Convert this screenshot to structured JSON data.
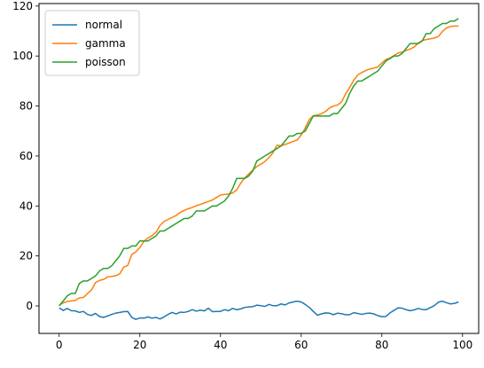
{
  "chart_data": {
    "type": "line",
    "title": "",
    "xlabel": "",
    "ylabel": "",
    "xlim": [
      -5,
      104
    ],
    "ylim": [
      -11,
      121
    ],
    "xticks": [
      0,
      20,
      40,
      60,
      80,
      100
    ],
    "yticks": [
      0,
      20,
      40,
      60,
      80,
      100,
      120
    ],
    "grid": false,
    "legend": {
      "position": "top-left",
      "entries": [
        "normal",
        "gamma",
        "poisson"
      ]
    },
    "x": [
      0,
      1,
      2,
      3,
      4,
      5,
      6,
      7,
      8,
      9,
      10,
      11,
      12,
      13,
      14,
      15,
      16,
      17,
      18,
      19,
      20,
      21,
      22,
      23,
      24,
      25,
      26,
      27,
      28,
      29,
      30,
      31,
      32,
      33,
      34,
      35,
      36,
      37,
      38,
      39,
      40,
      41,
      42,
      43,
      44,
      45,
      46,
      47,
      48,
      49,
      50,
      51,
      52,
      53,
      54,
      55,
      56,
      57,
      58,
      59,
      60,
      61,
      62,
      63,
      64,
      65,
      66,
      67,
      68,
      69,
      70,
      71,
      72,
      73,
      74,
      75,
      76,
      77,
      78,
      79,
      80,
      81,
      82,
      83,
      84,
      85,
      86,
      87,
      88,
      89,
      90,
      91,
      92,
      93,
      94,
      95,
      96,
      97,
      98,
      99
    ],
    "series": [
      {
        "name": "normal",
        "color": "#1f77b4",
        "values": [
          -0.8,
          -1.8,
          -1.0,
          -1.9,
          -2.0,
          -2.6,
          -2.2,
          -3.4,
          -3.8,
          -3.0,
          -4.2,
          -4.6,
          -4.0,
          -3.4,
          -2.9,
          -2.6,
          -2.3,
          -2.2,
          -4.6,
          -5.4,
          -4.8,
          -4.9,
          -4.4,
          -4.9,
          -4.6,
          -5.2,
          -4.4,
          -3.4,
          -2.6,
          -3.2,
          -2.5,
          -2.6,
          -2.2,
          -1.5,
          -2.1,
          -1.7,
          -2.0,
          -0.9,
          -2.3,
          -2.2,
          -2.2,
          -1.5,
          -1.9,
          -1.0,
          -1.5,
          -1.2,
          -0.6,
          -0.4,
          -0.3,
          0.3,
          0.1,
          -0.2,
          0.6,
          0.1,
          0.1,
          0.8,
          0.4,
          1.2,
          1.6,
          1.9,
          1.6,
          0.6,
          -0.6,
          -2.2,
          -3.7,
          -3.2,
          -2.8,
          -2.9,
          -3.5,
          -2.9,
          -3.1,
          -3.5,
          -3.5,
          -2.7,
          -3.0,
          -3.4,
          -3.0,
          -2.9,
          -3.2,
          -3.9,
          -4.3,
          -4.2,
          -2.8,
          -1.8,
          -0.8,
          -0.9,
          -1.5,
          -1.9,
          -1.6,
          -1.0,
          -1.4,
          -1.5,
          -0.7,
          0.1,
          1.5,
          1.9,
          1.3,
          0.8,
          1.0,
          1.6
        ]
      },
      {
        "name": "gamma",
        "color": "#ff7f0e",
        "values": [
          0.4,
          1.2,
          1.8,
          2.0,
          2.2,
          3.2,
          3.4,
          4.9,
          6.4,
          9.3,
          10.2,
          10.6,
          11.6,
          11.8,
          12.1,
          12.8,
          15.5,
          16.2,
          20.6,
          21.6,
          23.4,
          25.8,
          27.2,
          28.1,
          29.4,
          32.2,
          33.8,
          34.6,
          35.4,
          36.2,
          37.4,
          38.2,
          38.9,
          39.4,
          40.1,
          40.6,
          41.2,
          41.8,
          42.4,
          43.4,
          44.4,
          44.6,
          44.8,
          45.2,
          46.4,
          49.1,
          51.2,
          52.8,
          54.3,
          55.8,
          56.7,
          57.8,
          59.4,
          61.3,
          64.3,
          64.1,
          64.6,
          65.2,
          65.8,
          66.4,
          68.4,
          71.2,
          74.6,
          76.1,
          76.4,
          76.9,
          77.8,
          79.2,
          80.0,
          80.4,
          81.6,
          84.8,
          87.4,
          90.2,
          92.4,
          93.4,
          94.2,
          94.8,
          95.2,
          95.6,
          97.2,
          98.6,
          99.2,
          100.2,
          101.2,
          101.6,
          102.2,
          102.8,
          103.6,
          105.2,
          106.2,
          106.6,
          106.9,
          107.2,
          107.8,
          109.8,
          111.2,
          111.8,
          112.0,
          112.0
        ]
      },
      {
        "name": "poisson",
        "color": "#2ca02c",
        "values": [
          0,
          2,
          4,
          5,
          5,
          9,
          10,
          10,
          11,
          12,
          14,
          15,
          15,
          16,
          18,
          20,
          23,
          23,
          24,
          24,
          26,
          26,
          26,
          27,
          28,
          30,
          30,
          31,
          32,
          33,
          34,
          35,
          35,
          36,
          38,
          38,
          38,
          39,
          40,
          40,
          41,
          42,
          44,
          47,
          51,
          51,
          51,
          52,
          54,
          58,
          59,
          60,
          61,
          62,
          63,
          64,
          66,
          68,
          68,
          69,
          69,
          70,
          73,
          76,
          76,
          76,
          76,
          76,
          77,
          77,
          79,
          81,
          85,
          88,
          90,
          90,
          91,
          92,
          93,
          94,
          96,
          98,
          99,
          100,
          100,
          101,
          103,
          105,
          105,
          105,
          106,
          109,
          109,
          111,
          112,
          113,
          113,
          114,
          114,
          115
        ]
      }
    ]
  }
}
